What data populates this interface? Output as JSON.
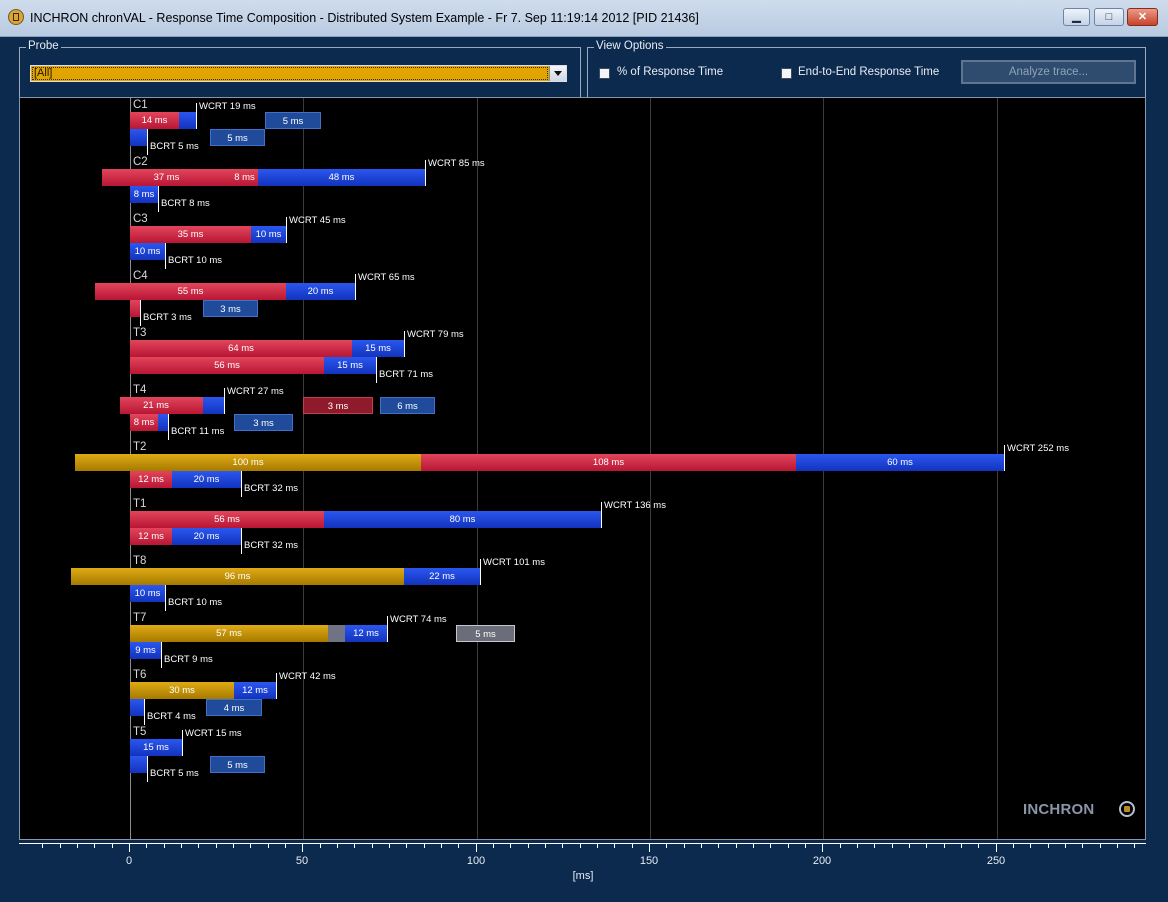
{
  "window": {
    "title": "INCHRON chronVAL - Response Time Composition - Distributed System Example - Fr 7. Sep 11:19:14 2012 [PID 21436]",
    "buttons": {
      "minimize": "▁",
      "maximize": "□",
      "close": "✕"
    }
  },
  "probe": {
    "label": "Probe",
    "selected": "[All]"
  },
  "view_options": {
    "label": "View Options",
    "percent_label": "% of Response Time",
    "percent_checked": false,
    "e2e_label": "End-to-End Response Time",
    "e2e_checked": false,
    "analyze_label": "Analyze trace..."
  },
  "brand": {
    "logo_text": "INCHRON"
  },
  "colors": {
    "red": "#c8223f",
    "blue": "#1d44d8",
    "gold": "#c8950a",
    "gray": "#6f7384",
    "background": "#0b2a4d",
    "plot": "#000000"
  },
  "chart_data": {
    "type": "bar",
    "xlabel": "[ms]",
    "xlim": [
      -31,
      293
    ],
    "xticks": [
      0,
      50,
      100,
      150,
      200,
      250
    ],
    "minor_tick_step": 5,
    "grid": true,
    "rows": [
      {
        "name": "C1",
        "wcrt": "WCRT 19 ms",
        "bcrt": "BCRT 5 ms",
        "wcrt_segments": [
          {
            "start": 0,
            "end": 14,
            "color": "red",
            "label": "14 ms"
          },
          {
            "start": 14,
            "end": 19,
            "color": "blue",
            "label": ""
          }
        ],
        "wcrt_extras": [
          {
            "start": 39,
            "end": 55,
            "style": "darkblue",
            "label": "5 ms"
          }
        ],
        "bcrt_segments": [
          {
            "start": 0,
            "end": 5,
            "color": "blue",
            "label": ""
          }
        ],
        "bcrt_extras": [
          {
            "start": 23,
            "end": 39,
            "style": "darkblue",
            "label": "5 ms"
          }
        ]
      },
      {
        "name": "C2",
        "wcrt": "WCRT 85 ms",
        "bcrt": "BCRT 8 ms",
        "wcrt_segments": [
          {
            "start": -8,
            "end": 29,
            "color": "red",
            "label": "37 ms"
          },
          {
            "start": 29,
            "end": 37,
            "color": "red",
            "label": "8 ms"
          },
          {
            "start": 37,
            "end": 85,
            "color": "blue",
            "label": "48 ms"
          }
        ],
        "wcrt_extras": [],
        "bcrt_segments": [
          {
            "start": 0,
            "end": 8,
            "color": "blue",
            "label": "8 ms"
          }
        ],
        "bcrt_extras": []
      },
      {
        "name": "C3",
        "wcrt": "WCRT 45 ms",
        "bcrt": "BCRT 10 ms",
        "wcrt_segments": [
          {
            "start": 0,
            "end": 35,
            "color": "red",
            "label": "35 ms"
          },
          {
            "start": 35,
            "end": 45,
            "color": "blue",
            "label": "10 ms"
          }
        ],
        "wcrt_extras": [],
        "bcrt_segments": [
          {
            "start": 0,
            "end": 10,
            "color": "blue",
            "label": "10 ms"
          }
        ],
        "bcrt_extras": []
      },
      {
        "name": "C4",
        "wcrt": "WCRT 65 ms",
        "bcrt": "BCRT 3 ms",
        "wcrt_segments": [
          {
            "start": -10,
            "end": 45,
            "color": "red",
            "label": "55 ms"
          },
          {
            "start": 45,
            "end": 65,
            "color": "blue",
            "label": "20 ms"
          }
        ],
        "wcrt_extras": [],
        "bcrt_segments": [
          {
            "start": 0,
            "end": 3,
            "color": "red",
            "label": ""
          }
        ],
        "bcrt_extras": [
          {
            "start": 21,
            "end": 37,
            "style": "darkblue",
            "label": "3 ms"
          }
        ]
      },
      {
        "name": "T3",
        "wcrt": "WCRT 79 ms",
        "bcrt": "BCRT 71 ms",
        "wcrt_segments": [
          {
            "start": 0,
            "end": 64,
            "color": "red",
            "label": "64 ms"
          },
          {
            "start": 64,
            "end": 79,
            "color": "blue",
            "label": "15 ms"
          }
        ],
        "wcrt_extras": [],
        "bcrt_segments": [
          {
            "start": 0,
            "end": 56,
            "color": "red",
            "label": "56 ms"
          },
          {
            "start": 56,
            "end": 71,
            "color": "blue",
            "label": "15 ms"
          }
        ],
        "bcrt_extras": []
      },
      {
        "name": "T4",
        "wcrt": "WCRT 27 ms",
        "bcrt": "BCRT 11 ms",
        "wcrt_segments": [
          {
            "start": -3,
            "end": 18,
            "color": "red",
            "label": "21 ms"
          },
          {
            "start": 18,
            "end": 21,
            "color": "red",
            "label": ""
          },
          {
            "start": 21,
            "end": 27,
            "color": "blue",
            "label": ""
          }
        ],
        "wcrt_extras": [
          {
            "start": 50,
            "end": 70,
            "style": "darkred",
            "label": "3 ms"
          },
          {
            "start": 72,
            "end": 88,
            "style": "darkblue",
            "label": "6 ms"
          }
        ],
        "bcrt_segments": [
          {
            "start": 0,
            "end": 8,
            "color": "red",
            "label": "8 ms"
          },
          {
            "start": 8,
            "end": 11,
            "color": "blue",
            "label": ""
          }
        ],
        "bcrt_extras": [
          {
            "start": 30,
            "end": 47,
            "style": "darkblue",
            "label": "3 ms"
          }
        ]
      },
      {
        "name": "T2",
        "wcrt": "WCRT 252 ms",
        "bcrt": "BCRT 32 ms",
        "wcrt_segments": [
          {
            "start": -16,
            "end": 84,
            "color": "gold",
            "label": "100 ms"
          },
          {
            "start": 84,
            "end": 192,
            "color": "red",
            "label": "108 ms"
          },
          {
            "start": 192,
            "end": 252,
            "color": "blue",
            "label": "60 ms"
          }
        ],
        "wcrt_extras": [],
        "bcrt_segments": [
          {
            "start": 0,
            "end": 12,
            "color": "red",
            "label": "12 ms"
          },
          {
            "start": 12,
            "end": 32,
            "color": "blue",
            "label": "20 ms"
          }
        ],
        "bcrt_extras": []
      },
      {
        "name": "T1",
        "wcrt": "WCRT 136 ms",
        "bcrt": "BCRT 32 ms",
        "wcrt_segments": [
          {
            "start": 0,
            "end": 56,
            "color": "red",
            "label": "56 ms"
          },
          {
            "start": 56,
            "end": 136,
            "color": "blue",
            "label": "80 ms"
          }
        ],
        "wcrt_extras": [],
        "bcrt_segments": [
          {
            "start": 0,
            "end": 12,
            "color": "red",
            "label": "12 ms"
          },
          {
            "start": 12,
            "end": 32,
            "color": "blue",
            "label": "20 ms"
          }
        ],
        "bcrt_extras": []
      },
      {
        "name": "T8",
        "wcrt": "WCRT 101 ms",
        "bcrt": "BCRT 10 ms",
        "wcrt_segments": [
          {
            "start": -17,
            "end": 79,
            "color": "gold",
            "label": "96 ms"
          },
          {
            "start": 79,
            "end": 101,
            "color": "blue",
            "label": "22 ms"
          }
        ],
        "wcrt_extras": [],
        "bcrt_segments": [
          {
            "start": 0,
            "end": 10,
            "color": "blue",
            "label": "10 ms"
          }
        ],
        "bcrt_extras": []
      },
      {
        "name": "T7",
        "wcrt": "WCRT 74 ms",
        "bcrt": "BCRT 9 ms",
        "wcrt_segments": [
          {
            "start": 0,
            "end": 57,
            "color": "gold",
            "label": "57 ms"
          },
          {
            "start": 57,
            "end": 62,
            "color": "gray",
            "label": ""
          },
          {
            "start": 62,
            "end": 74,
            "color": "blue",
            "label": "12 ms"
          }
        ],
        "wcrt_extras": [
          {
            "start": 94,
            "end": 111,
            "style": "lightgray",
            "label": "5 ms"
          }
        ],
        "bcrt_segments": [
          {
            "start": 0,
            "end": 9,
            "color": "blue",
            "label": "9 ms"
          }
        ],
        "bcrt_extras": []
      },
      {
        "name": "T6",
        "wcrt": "WCRT 42 ms",
        "bcrt": "BCRT 4 ms",
        "wcrt_segments": [
          {
            "start": 0,
            "end": 30,
            "color": "gold",
            "label": "30 ms"
          },
          {
            "start": 30,
            "end": 42,
            "color": "blue",
            "label": "12 ms"
          }
        ],
        "wcrt_extras": [],
        "bcrt_segments": [
          {
            "start": 0,
            "end": 4,
            "color": "blue",
            "label": ""
          }
        ],
        "bcrt_extras": [
          {
            "start": 22,
            "end": 38,
            "style": "darkblue",
            "label": "4 ms"
          }
        ]
      },
      {
        "name": "T5",
        "wcrt": "WCRT 15 ms",
        "bcrt": "BCRT 5 ms",
        "wcrt_segments": [
          {
            "start": 0,
            "end": 15,
            "color": "blue",
            "label": "15 ms"
          }
        ],
        "wcrt_extras": [],
        "bcrt_segments": [
          {
            "start": 0,
            "end": 5,
            "color": "blue",
            "label": ""
          }
        ],
        "bcrt_extras": [
          {
            "start": 23,
            "end": 39,
            "style": "darkblue",
            "label": "5 ms"
          }
        ]
      }
    ]
  }
}
